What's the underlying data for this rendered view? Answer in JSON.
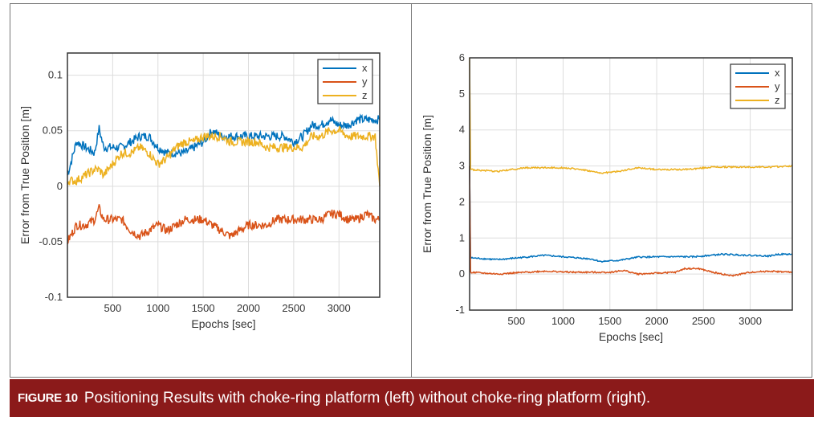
{
  "caption": {
    "label": "FIGURE 10",
    "text": "Positioning Results with choke-ring platform (left) without choke-ring platform (right)."
  },
  "colors": {
    "x": "#0072bd",
    "y": "#d95319",
    "z": "#edb120",
    "caption_bg": "#8b1a1a"
  },
  "chart_data": [
    {
      "type": "line",
      "title": "",
      "xlabel": "Epochs [sec]",
      "ylabel": "Error from True Position [m]",
      "xlim": [
        0,
        3450
      ],
      "ylim": [
        -0.1,
        0.12
      ],
      "xticks": [
        500,
        1000,
        1500,
        2000,
        2500,
        3000
      ],
      "yticks": [
        -0.1,
        -0.05,
        0,
        0.05,
        0.1
      ],
      "ytick_labels": [
        "-0.1",
        "-0.05",
        "0",
        "0.05",
        "0.1"
      ],
      "grid": true,
      "legend": "top-right",
      "series": [
        {
          "name": "x",
          "x": [
            0,
            100,
            200,
            300,
            350,
            400,
            500,
            600,
            700,
            800,
            900,
            1000,
            1100,
            1200,
            1300,
            1400,
            1500,
            1600,
            1700,
            1800,
            1900,
            2000,
            2100,
            2200,
            2300,
            2400,
            2500,
            2600,
            2700,
            2800,
            2900,
            3000,
            3100,
            3200,
            3300,
            3400,
            3450
          ],
          "values": [
            0.01,
            0.04,
            0.035,
            0.03,
            0.052,
            0.035,
            0.035,
            0.035,
            0.04,
            0.045,
            0.045,
            0.035,
            0.03,
            0.03,
            0.03,
            0.035,
            0.04,
            0.05,
            0.045,
            0.045,
            0.045,
            0.045,
            0.045,
            0.045,
            0.045,
            0.045,
            0.04,
            0.045,
            0.055,
            0.055,
            0.06,
            0.055,
            0.055,
            0.06,
            0.06,
            0.06,
            0.06
          ]
        },
        {
          "name": "y",
          "x": [
            0,
            100,
            200,
            300,
            350,
            400,
            500,
            600,
            700,
            800,
            900,
            1000,
            1100,
            1200,
            1300,
            1400,
            1500,
            1600,
            1700,
            1800,
            1900,
            2000,
            2100,
            2200,
            2300,
            2400,
            2500,
            2600,
            2700,
            2800,
            2900,
            3000,
            3100,
            3200,
            3300,
            3400,
            3450
          ],
          "values": [
            -0.05,
            -0.035,
            -0.035,
            -0.03,
            -0.02,
            -0.03,
            -0.03,
            -0.03,
            -0.04,
            -0.045,
            -0.04,
            -0.035,
            -0.04,
            -0.035,
            -0.03,
            -0.03,
            -0.03,
            -0.035,
            -0.04,
            -0.045,
            -0.04,
            -0.035,
            -0.035,
            -0.035,
            -0.03,
            -0.03,
            -0.03,
            -0.03,
            -0.03,
            -0.03,
            -0.025,
            -0.025,
            -0.03,
            -0.03,
            -0.025,
            -0.03,
            -0.03
          ]
        },
        {
          "name": "z",
          "x": [
            0,
            100,
            200,
            300,
            350,
            400,
            500,
            600,
            700,
            800,
            900,
            1000,
            1100,
            1200,
            1300,
            1400,
            1500,
            1600,
            1700,
            1800,
            1900,
            2000,
            2100,
            2200,
            2300,
            2400,
            2500,
            2600,
            2700,
            2800,
            2900,
            3000,
            3100,
            3200,
            3300,
            3400,
            3450
          ],
          "values": [
            0.005,
            0.005,
            0.01,
            0.015,
            0.015,
            0.01,
            0.02,
            0.03,
            0.03,
            0.035,
            0.03,
            0.02,
            0.025,
            0.035,
            0.04,
            0.04,
            0.045,
            0.045,
            0.045,
            0.04,
            0.04,
            0.04,
            0.04,
            0.035,
            0.035,
            0.035,
            0.035,
            0.035,
            0.045,
            0.045,
            0.05,
            0.05,
            0.045,
            0.045,
            0.045,
            0.045,
            0.0
          ]
        }
      ]
    },
    {
      "type": "line",
      "title": "",
      "xlabel": "Epochs [sec]",
      "ylabel": "Error from True Position [m]",
      "xlim": [
        0,
        3450
      ],
      "ylim": [
        -1,
        6
      ],
      "xticks": [
        500,
        1000,
        1500,
        2000,
        2500,
        3000
      ],
      "yticks": [
        -1,
        0,
        1,
        2,
        3,
        4,
        5,
        6
      ],
      "ytick_labels": [
        "-1",
        "0",
        "1",
        "2",
        "3",
        "4",
        "5",
        "6"
      ],
      "grid": true,
      "legend": "top-right",
      "series": [
        {
          "name": "x",
          "x": [
            0,
            10,
            300,
            600,
            800,
            1000,
            1300,
            1400,
            1600,
            1800,
            2100,
            2400,
            2700,
            3000,
            3200,
            3300,
            3450
          ],
          "values": [
            3,
            0.45,
            0.4,
            0.47,
            0.52,
            0.48,
            0.42,
            0.35,
            0.38,
            0.47,
            0.48,
            0.48,
            0.55,
            0.52,
            0.5,
            0.55,
            0.55
          ]
        },
        {
          "name": "y",
          "x": [
            0,
            10,
            300,
            600,
            800,
            1100,
            1500,
            1650,
            1800,
            2200,
            2300,
            2450,
            2600,
            2800,
            3000,
            3200,
            3450
          ],
          "values": [
            3,
            0.05,
            0.0,
            0.05,
            0.08,
            0.05,
            0.05,
            0.1,
            0.0,
            0.05,
            0.15,
            0.15,
            0.05,
            -0.05,
            0.05,
            0.08,
            0.05
          ]
        },
        {
          "name": "z",
          "x": [
            0,
            10,
            300,
            600,
            1000,
            1200,
            1400,
            1600,
            1800,
            2000,
            2300,
            2600,
            2900,
            3200,
            3450
          ],
          "values": [
            6,
            2.9,
            2.85,
            2.95,
            2.95,
            2.9,
            2.8,
            2.85,
            2.95,
            2.9,
            2.9,
            2.97,
            2.97,
            2.97,
            3.0
          ]
        }
      ]
    }
  ]
}
